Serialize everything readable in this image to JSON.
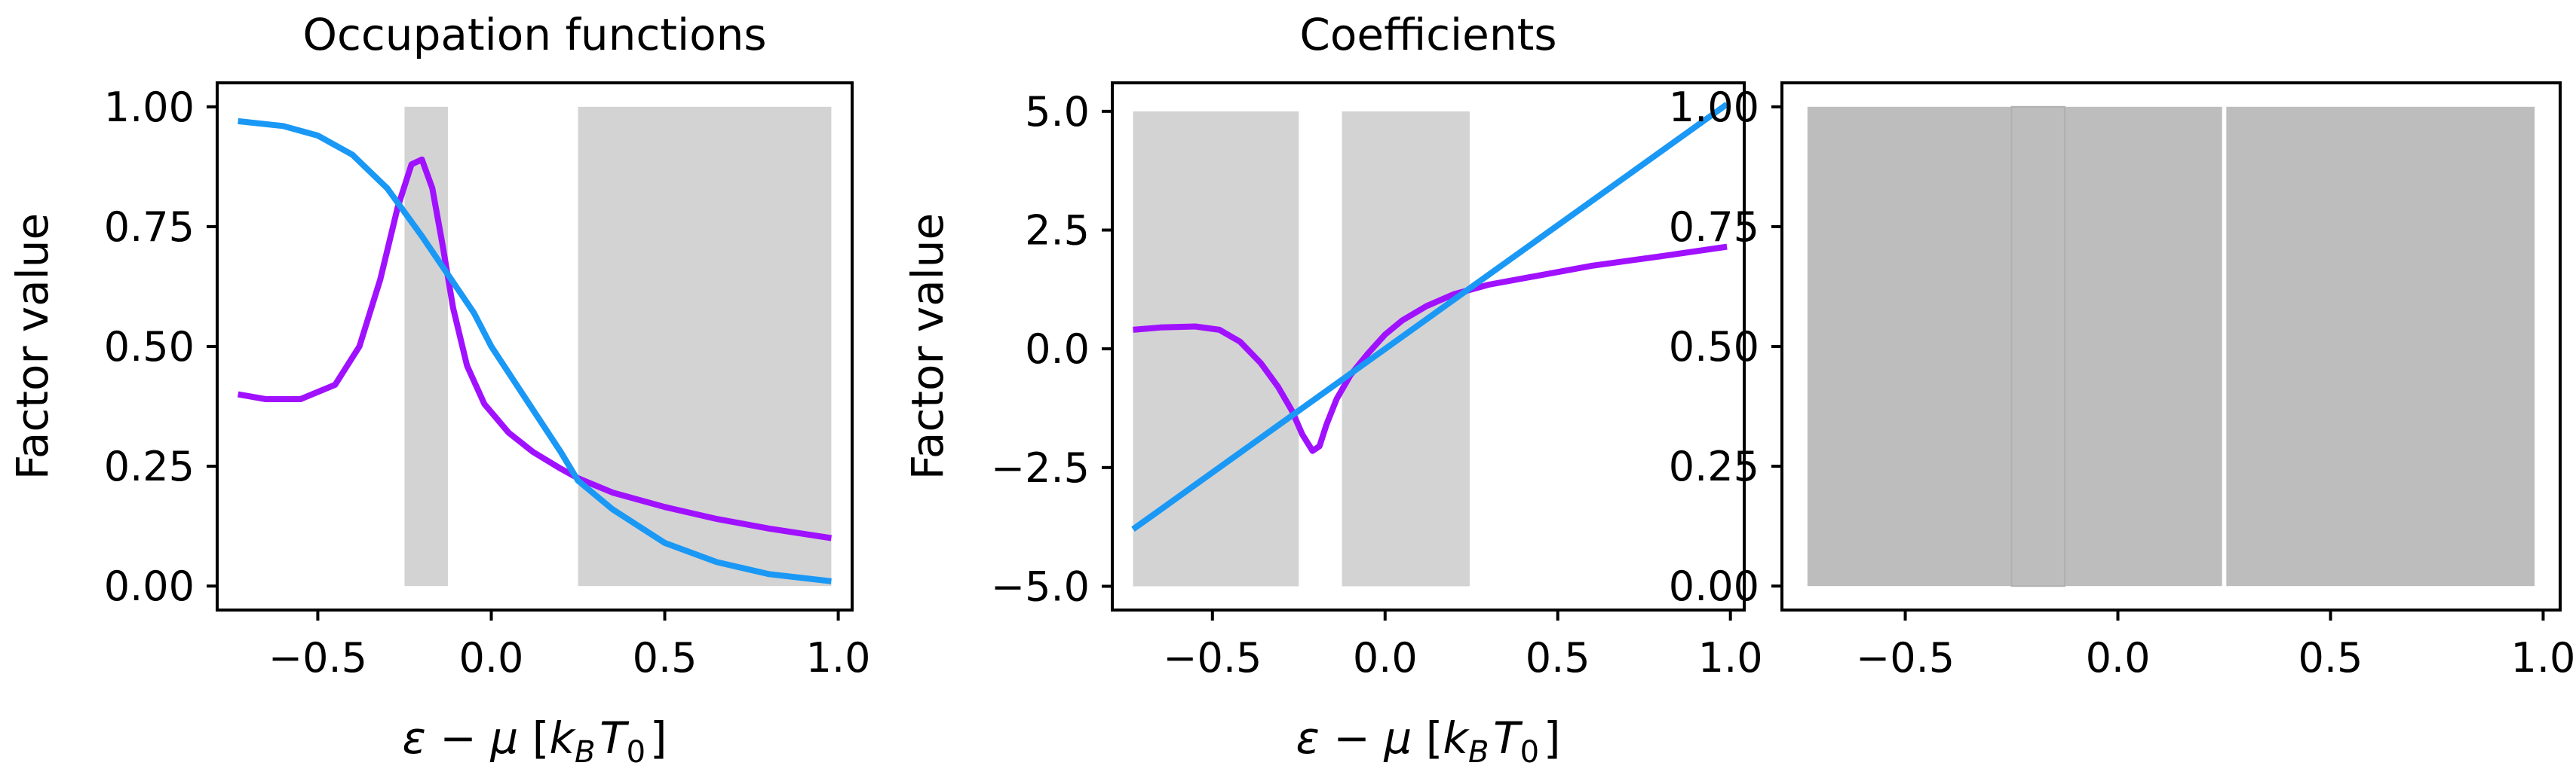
{
  "chart_data": [
    {
      "type": "line",
      "title": "Occupation functions",
      "xlabel": "ε − μ [k_B T_0]",
      "ylabel": "Factor value",
      "xlim": [
        -0.79,
        1.04
      ],
      "ylim": [
        -0.05,
        1.05
      ],
      "xticks": [
        -0.5,
        0.0,
        0.5,
        1.0
      ],
      "xticklabels": [
        "−0.5",
        "0.0",
        "0.5",
        "1.0"
      ],
      "yticks": [
        0.0,
        0.25,
        0.5,
        0.75,
        1.0
      ],
      "yticklabels": [
        "0.00",
        "0.25",
        "0.50",
        "0.75",
        "1.00"
      ],
      "shaded_regions": [
        {
          "x0": -0.25,
          "x1": -0.125,
          "y0": 0.0,
          "y1": 1.0
        },
        {
          "x0": 0.25,
          "x1": 0.98,
          "y0": 0.0,
          "y1": 1.0
        }
      ],
      "shade_color": "#d3d3d3",
      "series": [
        {
          "color": "#a011ff",
          "points": [
            [
              -0.73,
              0.4
            ],
            [
              -0.65,
              0.39
            ],
            [
              -0.55,
              0.39
            ],
            [
              -0.45,
              0.42
            ],
            [
              -0.38,
              0.5
            ],
            [
              -0.32,
              0.64
            ],
            [
              -0.27,
              0.79
            ],
            [
              -0.23,
              0.88
            ],
            [
              -0.2,
              0.89
            ],
            [
              -0.17,
              0.83
            ],
            [
              -0.14,
              0.71
            ],
            [
              -0.11,
              0.58
            ],
            [
              -0.07,
              0.46
            ],
            [
              -0.02,
              0.38
            ],
            [
              0.05,
              0.32
            ],
            [
              0.12,
              0.28
            ],
            [
              0.2,
              0.245
            ],
            [
              0.25,
              0.225
            ],
            [
              0.35,
              0.195
            ],
            [
              0.5,
              0.165
            ],
            [
              0.65,
              0.14
            ],
            [
              0.8,
              0.12
            ],
            [
              0.98,
              0.1
            ]
          ]
        },
        {
          "color": "#1a98f5",
          "points": [
            [
              -0.73,
              0.97
            ],
            [
              -0.6,
              0.96
            ],
            [
              -0.5,
              0.94
            ],
            [
              -0.4,
              0.9
            ],
            [
              -0.3,
              0.83
            ],
            [
              -0.25,
              0.78
            ],
            [
              -0.2,
              0.73
            ],
            [
              -0.125,
              0.65
            ],
            [
              -0.05,
              0.57
            ],
            [
              0.0,
              0.5
            ],
            [
              0.1,
              0.39
            ],
            [
              0.2,
              0.28
            ],
            [
              0.25,
              0.22
            ],
            [
              0.35,
              0.16
            ],
            [
              0.5,
              0.09
            ],
            [
              0.65,
              0.05
            ],
            [
              0.8,
              0.025
            ],
            [
              0.98,
              0.01
            ]
          ]
        }
      ]
    },
    {
      "type": "line",
      "title": "Coefficients",
      "xlabel": "ε − μ [k_B T_0]",
      "ylabel": "Factor value",
      "xlim": [
        -0.79,
        1.04
      ],
      "ylim": [
        -5.5,
        5.6
      ],
      "xticks": [
        -0.5,
        0.0,
        0.5,
        1.0
      ],
      "xticklabels": [
        "−0.5",
        "0.0",
        "0.5",
        "1.0"
      ],
      "yticks": [
        -5.0,
        -2.5,
        0.0,
        2.5,
        5.0
      ],
      "yticklabels": [
        "−5.0",
        "−2.5",
        "0.0",
        "2.5",
        "5.0"
      ],
      "shaded_regions": [
        {
          "x0": -0.73,
          "x1": -0.25,
          "y0": -5.0,
          "y1": 5.0
        },
        {
          "x0": -0.125,
          "x1": 0.245,
          "y0": -5.0,
          "y1": 5.0
        }
      ],
      "shade_color": "#d3d3d3",
      "series": [
        {
          "color": "#a011ff",
          "points": [
            [
              -0.73,
              0.4
            ],
            [
              -0.65,
              0.45
            ],
            [
              -0.55,
              0.47
            ],
            [
              -0.48,
              0.4
            ],
            [
              -0.42,
              0.15
            ],
            [
              -0.36,
              -0.3
            ],
            [
              -0.31,
              -0.8
            ],
            [
              -0.27,
              -1.3
            ],
            [
              -0.24,
              -1.8
            ],
            [
              -0.21,
              -2.15
            ],
            [
              -0.19,
              -2.05
            ],
            [
              -0.17,
              -1.6
            ],
            [
              -0.14,
              -1.05
            ],
            [
              -0.1,
              -0.55
            ],
            [
              -0.05,
              -0.1
            ],
            [
              0.0,
              0.3
            ],
            [
              0.05,
              0.6
            ],
            [
              0.12,
              0.9
            ],
            [
              0.2,
              1.15
            ],
            [
              0.3,
              1.35
            ],
            [
              0.45,
              1.55
            ],
            [
              0.6,
              1.75
            ],
            [
              0.8,
              1.95
            ],
            [
              0.99,
              2.15
            ]
          ]
        },
        {
          "color": "#1a98f5",
          "points": [
            [
              -0.73,
              -3.8
            ],
            [
              0.99,
              5.15
            ]
          ]
        }
      ]
    },
    {
      "type": "line",
      "title": "",
      "xlabel": "",
      "ylabel": "",
      "xlim": [
        -0.79,
        1.04
      ],
      "ylim": [
        -0.05,
        1.05
      ],
      "xticks": [
        -0.5,
        0.0,
        0.5,
        1.0
      ],
      "xticklabels": [
        "−0.5",
        "0.0",
        "0.5",
        "1.0"
      ],
      "yticks": [
        0.0,
        0.25,
        0.5,
        0.75,
        1.0
      ],
      "yticklabels": [
        "0.00",
        "0.25",
        "0.50",
        "0.75",
        "1.00"
      ],
      "shaded_regions": [
        {
          "x0": -0.73,
          "x1": 0.245,
          "y0": 0.0,
          "y1": 1.0
        },
        {
          "x0": -0.25,
          "x1": -0.125,
          "y0": 0.0,
          "y1": 1.0
        },
        {
          "x0": 0.255,
          "x1": 0.98,
          "y0": 0.0,
          "y1": 1.0
        }
      ],
      "shade_color": "#bdbdbd",
      "series": []
    }
  ]
}
